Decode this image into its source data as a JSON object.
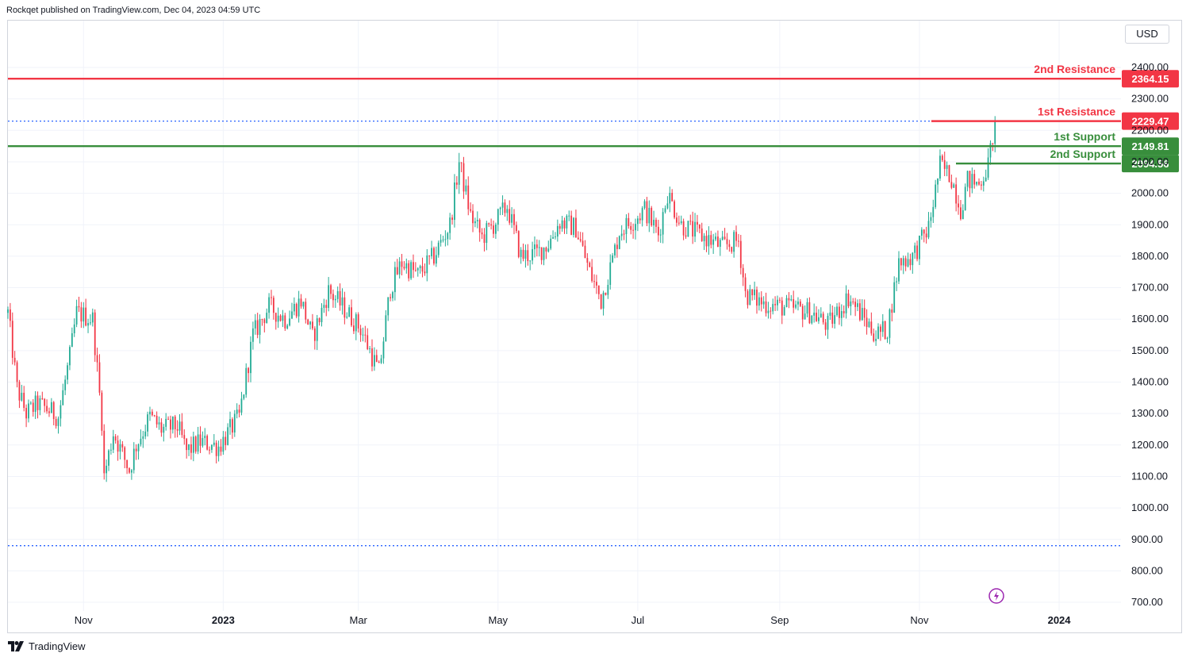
{
  "header": {
    "publisher_line": "Rockqet published on TradingView.com, Dec 04, 2023 04:59 UTC"
  },
  "currency_button": {
    "label": "USD"
  },
  "footer": {
    "brand": "TradingView"
  },
  "colors": {
    "up": "#22ab94",
    "down": "#f23645",
    "resistance": "#f23645",
    "support": "#388e3c",
    "dotted": "#2962ff",
    "grid": "#f0f3fa"
  },
  "chart_data": {
    "type": "candlestick",
    "title": "",
    "xlabel": "",
    "ylabel": "",
    "ylim": [
      650,
      2500
    ],
    "xlim": [
      "2022-09-29",
      "2024-01-28"
    ],
    "y_ticks": [
      "700.00",
      "800.00",
      "900.00",
      "1000.00",
      "1100.00",
      "1200.00",
      "1300.00",
      "1400.00",
      "1500.00",
      "1600.00",
      "1700.00",
      "1800.00",
      "1900.00",
      "2000.00",
      "2100.00",
      "2200.00",
      "2300.00",
      "2400.00"
    ],
    "x_ticks": [
      {
        "label": "Nov",
        "date": "2022-11-01",
        "bold": false
      },
      {
        "label": "2023",
        "date": "2023-01-01",
        "bold": true
      },
      {
        "label": "Mar",
        "date": "2023-03-01",
        "bold": false
      },
      {
        "label": "May",
        "date": "2023-05-01",
        "bold": false
      },
      {
        "label": "Jul",
        "date": "2023-07-01",
        "bold": false
      },
      {
        "label": "Sep",
        "date": "2023-09-01",
        "bold": false
      },
      {
        "label": "Nov",
        "date": "2023-11-01",
        "bold": false
      },
      {
        "label": "2024",
        "date": "2024-01-01",
        "bold": true
      }
    ],
    "levels": [
      {
        "name": "2nd Resistance",
        "value": 2364.15,
        "value_label": "2364.15",
        "kind": "resistance"
      },
      {
        "name": "1st Resistance",
        "value": 2229.47,
        "value_label": "2229.47",
        "kind": "resistance"
      },
      {
        "name": "1st Support",
        "value": 2149.81,
        "value_label": "2149.81",
        "kind": "support"
      },
      {
        "name": "2nd Support",
        "value": 2094.56,
        "value_label": "2094.56",
        "kind": "support"
      }
    ],
    "dotted_lines": [
      2229.47,
      880
    ],
    "close_series": [
      {
        "date": "2022-09-29",
        "close": 1620
      },
      {
        "date": "2022-10-03",
        "close": 1380
      },
      {
        "date": "2022-10-07",
        "close": 1300
      },
      {
        "date": "2022-10-12",
        "close": 1330
      },
      {
        "date": "2022-10-17",
        "close": 1310
      },
      {
        "date": "2022-10-21",
        "close": 1290
      },
      {
        "date": "2022-10-26",
        "close": 1480
      },
      {
        "date": "2022-10-29",
        "close": 1620
      },
      {
        "date": "2022-11-05",
        "close": 1600
      },
      {
        "date": "2022-11-09",
        "close": 1280
      },
      {
        "date": "2022-11-10",
        "close": 1100
      },
      {
        "date": "2022-11-14",
        "close": 1240
      },
      {
        "date": "2022-11-21",
        "close": 1120
      },
      {
        "date": "2022-11-24",
        "close": 1200
      },
      {
        "date": "2022-11-30",
        "close": 1290
      },
      {
        "date": "2022-12-05",
        "close": 1250
      },
      {
        "date": "2022-12-12",
        "close": 1260
      },
      {
        "date": "2022-12-16",
        "close": 1180
      },
      {
        "date": "2022-12-22",
        "close": 1210
      },
      {
        "date": "2022-12-30",
        "close": 1195
      },
      {
        "date": "2023-01-08",
        "close": 1290
      },
      {
        "date": "2023-01-14",
        "close": 1550
      },
      {
        "date": "2023-01-21",
        "close": 1640
      },
      {
        "date": "2023-01-28",
        "close": 1600
      },
      {
        "date": "2023-02-04",
        "close": 1660
      },
      {
        "date": "2023-02-09",
        "close": 1540
      },
      {
        "date": "2023-02-16",
        "close": 1690
      },
      {
        "date": "2023-02-22",
        "close": 1640
      },
      {
        "date": "2023-03-02",
        "close": 1570
      },
      {
        "date": "2023-03-10",
        "close": 1430
      },
      {
        "date": "2023-03-15",
        "close": 1700
      },
      {
        "date": "2023-03-20",
        "close": 1780
      },
      {
        "date": "2023-03-27",
        "close": 1740
      },
      {
        "date": "2023-04-03",
        "close": 1800
      },
      {
        "date": "2023-04-10",
        "close": 1900
      },
      {
        "date": "2023-04-14",
        "close": 2100
      },
      {
        "date": "2023-04-19",
        "close": 1930
      },
      {
        "date": "2023-04-24",
        "close": 1860
      },
      {
        "date": "2023-04-29",
        "close": 1900
      },
      {
        "date": "2023-05-05",
        "close": 1960
      },
      {
        "date": "2023-05-11",
        "close": 1800
      },
      {
        "date": "2023-05-18",
        "close": 1810
      },
      {
        "date": "2023-05-23",
        "close": 1840
      },
      {
        "date": "2023-05-28",
        "close": 1910
      },
      {
        "date": "2023-06-04",
        "close": 1890
      },
      {
        "date": "2023-06-10",
        "close": 1750
      },
      {
        "date": "2023-06-15",
        "close": 1660
      },
      {
        "date": "2023-06-20",
        "close": 1790
      },
      {
        "date": "2023-06-23",
        "close": 1880
      },
      {
        "date": "2023-06-30",
        "close": 1920
      },
      {
        "date": "2023-07-04",
        "close": 1950
      },
      {
        "date": "2023-07-10",
        "close": 1870
      },
      {
        "date": "2023-07-14",
        "close": 2000
      },
      {
        "date": "2023-07-20",
        "close": 1900
      },
      {
        "date": "2023-07-30",
        "close": 1860
      },
      {
        "date": "2023-08-07",
        "close": 1830
      },
      {
        "date": "2023-08-14",
        "close": 1850
      },
      {
        "date": "2023-08-17",
        "close": 1680
      },
      {
        "date": "2023-08-25",
        "close": 1650
      },
      {
        "date": "2023-09-01",
        "close": 1640
      },
      {
        "date": "2023-09-10",
        "close": 1630
      },
      {
        "date": "2023-09-15",
        "close": 1620
      },
      {
        "date": "2023-09-22",
        "close": 1580
      },
      {
        "date": "2023-10-01",
        "close": 1670
      },
      {
        "date": "2023-10-08",
        "close": 1600
      },
      {
        "date": "2023-10-13",
        "close": 1550
      },
      {
        "date": "2023-10-18",
        "close": 1570
      },
      {
        "date": "2023-10-23",
        "close": 1780
      },
      {
        "date": "2023-10-29",
        "close": 1800
      },
      {
        "date": "2023-11-05",
        "close": 1890
      },
      {
        "date": "2023-11-10",
        "close": 2090
      },
      {
        "date": "2023-11-15",
        "close": 2050
      },
      {
        "date": "2023-11-19",
        "close": 1950
      },
      {
        "date": "2023-11-22",
        "close": 2040
      },
      {
        "date": "2023-11-27",
        "close": 2030
      },
      {
        "date": "2023-12-01",
        "close": 2090
      },
      {
        "date": "2023-12-04",
        "close": 2229
      }
    ]
  }
}
